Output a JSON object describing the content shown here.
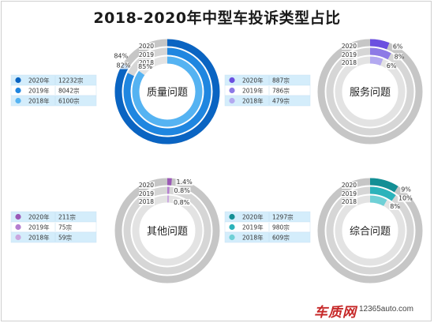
{
  "title": "2018-2020年中型车投诉类型占比",
  "watermark": {
    "brand": "车质网",
    "url": "12365auto.com"
  },
  "chart_data": [
    {
      "type": "pie",
      "center_label": "质量问题",
      "rings": [
        "2020",
        "2019",
        "2018"
      ],
      "percent_labels": [
        "84%",
        "82%",
        "85%"
      ],
      "values": [
        84,
        82,
        85
      ],
      "legend": [
        {
          "year": "2020年",
          "count": "12232宗"
        },
        {
          "year": "2019年",
          "count": "8042宗"
        },
        {
          "year": "2018年",
          "count": "6100宗"
        }
      ],
      "colors": [
        "#0a64c2",
        "#1f86e0",
        "#55b3f2"
      ]
    },
    {
      "type": "pie",
      "center_label": "服务问题",
      "rings": [
        "2020",
        "2019",
        "2018"
      ],
      "percent_labels": [
        "6%",
        "8%",
        "6%"
      ],
      "values": [
        6,
        8,
        6
      ],
      "legend": [
        {
          "year": "2020年",
          "count": "887宗"
        },
        {
          "year": "2019年",
          "count": "786宗"
        },
        {
          "year": "2018年",
          "count": "479宗"
        }
      ],
      "colors": [
        "#6b4fe0",
        "#8d7ae6",
        "#b3a9f0"
      ]
    },
    {
      "type": "pie",
      "center_label": "其他问题",
      "rings": [
        "2020",
        "2019",
        "2018"
      ],
      "percent_labels": [
        "1.4%",
        "0.8%",
        "0.8%"
      ],
      "values": [
        1.4,
        0.8,
        0.8
      ],
      "legend": [
        {
          "year": "2020年",
          "count": "211宗"
        },
        {
          "year": "2019年",
          "count": "75宗"
        },
        {
          "year": "2018年",
          "count": "59宗"
        }
      ],
      "colors": [
        "#9b59b6",
        "#b57fd0",
        "#caa6df"
      ]
    },
    {
      "type": "pie",
      "center_label": "综合问题",
      "rings": [
        "2020",
        "2019",
        "2018"
      ],
      "percent_labels": [
        "9%",
        "10%",
        "8%"
      ],
      "values": [
        9,
        10,
        8
      ],
      "legend": [
        {
          "year": "2020年",
          "count": "1297宗"
        },
        {
          "year": "2019年",
          "count": "980宗"
        },
        {
          "year": "2018年",
          "count": "609宗"
        }
      ],
      "colors": [
        "#138f95",
        "#2bb3bb",
        "#6fd0d6"
      ]
    }
  ]
}
